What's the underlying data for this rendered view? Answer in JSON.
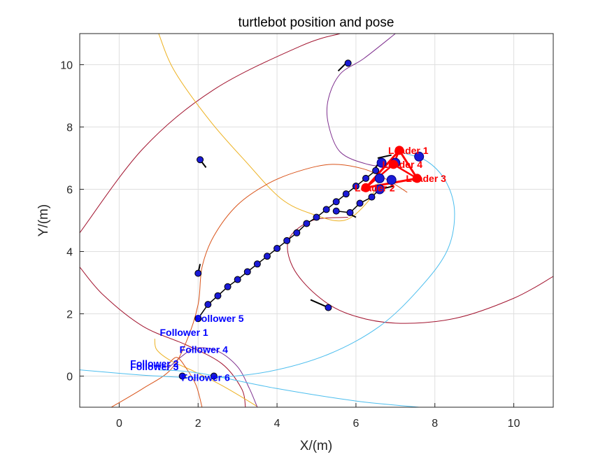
{
  "chart_data": {
    "type": "line",
    "title": "turtlebot position and pose",
    "xlabel": "X/(m)",
    "ylabel": "Y/(m)",
    "xlim": [
      -1,
      11
    ],
    "ylim": [
      -1,
      11
    ],
    "xticks": [
      0,
      2,
      4,
      6,
      8,
      10
    ],
    "yticks": [
      0,
      2,
      4,
      6,
      8,
      10
    ],
    "grid": true,
    "colors": {
      "leader": "#ff0000",
      "follower": "#0000ff",
      "marker_face": "#1a1ad6",
      "chain": "#000000",
      "traj_purple": "#7e2f8e",
      "traj_orange": "#edb120",
      "traj_red": "#d95319",
      "traj_cyan": "#4dbeee",
      "traj_maroon": "#a2142f"
    },
    "trajectories": [
      {
        "color": "#a2142f",
        "points": [
          [
            -1,
            4.6
          ],
          [
            0.6,
            7.3
          ],
          [
            2.4,
            9.2
          ],
          [
            4.6,
            10.6
          ],
          [
            5.6,
            11.0
          ]
        ]
      },
      {
        "color": "#a2142f",
        "points": [
          [
            -1,
            3.5
          ],
          [
            -0.4,
            2.6
          ],
          [
            0.6,
            1.6
          ],
          [
            1.7,
            1.0
          ],
          [
            2.6,
            0.4
          ],
          [
            3.1,
            -0.4
          ],
          [
            3.2,
            -1.0
          ]
        ]
      },
      {
        "color": "#a2142f",
        "points": [
          [
            11,
            3.2
          ],
          [
            10.0,
            2.5
          ],
          [
            8.5,
            1.85
          ],
          [
            7.0,
            1.7
          ],
          [
            5.8,
            2.0
          ],
          [
            5.0,
            2.6
          ],
          [
            4.4,
            3.5
          ],
          [
            4.3,
            4.4
          ],
          [
            4.9,
            5.0
          ],
          [
            5.8,
            5.1
          ]
        ]
      },
      {
        "color": "#edb120",
        "points": [
          [
            1.0,
            11.0
          ],
          [
            1.4,
            9.8
          ],
          [
            2.3,
            8.2
          ],
          [
            3.2,
            6.9
          ],
          [
            4.1,
            5.7
          ],
          [
            4.9,
            5.2
          ],
          [
            5.7,
            5.0
          ],
          [
            6.3,
            5.6
          ],
          [
            6.6,
            6.3
          ]
        ]
      },
      {
        "color": "#edb120",
        "points": [
          [
            0.9,
            1.2
          ],
          [
            0.95,
            0.85
          ],
          [
            1.3,
            0.5
          ],
          [
            1.9,
            0.15
          ],
          [
            2.6,
            -0.3
          ],
          [
            3.4,
            -0.9
          ],
          [
            3.5,
            -1.0
          ]
        ]
      },
      {
        "color": "#7e2f8e",
        "points": [
          [
            7.0,
            11.0
          ],
          [
            6.2,
            10.2
          ],
          [
            5.6,
            9.7
          ],
          [
            5.3,
            8.9
          ],
          [
            5.3,
            8.1
          ],
          [
            5.6,
            7.2
          ],
          [
            6.3,
            6.8
          ],
          [
            7.0,
            6.7
          ]
        ]
      },
      {
        "color": "#7e2f8e",
        "points": [
          [
            1.2,
            0.2
          ],
          [
            1.55,
            0.6
          ],
          [
            1.95,
            0.9
          ],
          [
            2.5,
            0.8
          ],
          [
            3.0,
            0.3
          ],
          [
            3.3,
            -0.4
          ],
          [
            3.5,
            -1.0
          ]
        ]
      },
      {
        "color": "#d95319",
        "points": [
          [
            -0.2,
            -1.0
          ],
          [
            0.6,
            -0.4
          ],
          [
            1.3,
            0.2
          ],
          [
            1.7,
            1.1
          ],
          [
            2.0,
            2.3
          ],
          [
            2.1,
            3.5
          ],
          [
            2.4,
            4.5
          ],
          [
            3.0,
            5.5
          ],
          [
            3.8,
            6.2
          ],
          [
            4.6,
            6.6
          ],
          [
            5.4,
            6.8
          ],
          [
            6.2,
            6.65
          ],
          [
            6.8,
            6.3
          ],
          [
            7.3,
            5.9
          ]
        ]
      },
      {
        "color": "#d95319",
        "points": [
          [
            1.2,
            0.3
          ],
          [
            1.45,
            0.6
          ],
          [
            1.7,
            0.25
          ],
          [
            1.95,
            -0.3
          ],
          [
            2.1,
            -1.0
          ]
        ]
      },
      {
        "color": "#4dbeee",
        "points": [
          [
            7.1,
            7.2
          ],
          [
            7.8,
            6.9
          ],
          [
            8.3,
            6.2
          ],
          [
            8.5,
            5.2
          ],
          [
            8.3,
            4.0
          ],
          [
            7.6,
            2.8
          ],
          [
            6.6,
            1.6
          ],
          [
            5.3,
            0.7
          ],
          [
            3.8,
            0.15
          ],
          [
            2.3,
            -0.05
          ],
          [
            1.0,
            0.0
          ],
          [
            0.1,
            0.08
          ],
          [
            -1,
            0.2
          ]
        ]
      },
      {
        "color": "#4dbeee",
        "points": [
          [
            1.0,
            0.2
          ],
          [
            2.0,
            0.1
          ],
          [
            4.0,
            -0.4
          ],
          [
            6.0,
            -0.8
          ],
          [
            7.6,
            -1.0
          ]
        ]
      }
    ],
    "chain_points": [
      [
        2.0,
        1.85
      ],
      [
        2.25,
        2.3
      ],
      [
        2.5,
        2.58
      ],
      [
        2.75,
        2.87
      ],
      [
        3.0,
        3.1
      ],
      [
        3.25,
        3.35
      ],
      [
        3.5,
        3.6
      ],
      [
        3.75,
        3.85
      ],
      [
        4.0,
        4.1
      ],
      [
        4.25,
        4.35
      ],
      [
        4.5,
        4.6
      ],
      [
        4.75,
        4.9
      ],
      [
        5.0,
        5.1
      ],
      [
        5.25,
        5.35
      ],
      [
        5.5,
        5.6
      ],
      [
        5.75,
        5.85
      ],
      [
        6.0,
        6.1
      ],
      [
        6.25,
        6.35
      ],
      [
        6.5,
        6.6
      ]
    ],
    "lower_chain_points": [
      [
        5.5,
        5.3
      ],
      [
        5.85,
        5.25
      ],
      [
        6.1,
        5.55
      ],
      [
        6.4,
        5.75
      ],
      [
        6.6,
        6.0
      ]
    ],
    "loose_markers": [
      [
        2.05,
        6.95
      ],
      [
        5.8,
        10.05
      ],
      [
        2.0,
        3.3
      ],
      [
        5.3,
        2.2
      ],
      [
        2.4,
        0.0
      ],
      [
        1.6,
        0.0
      ],
      [
        2.0,
        1.85
      ]
    ],
    "pose_segments": [
      [
        [
          5.55,
          9.8
        ],
        [
          5.75,
          10.05
        ]
      ],
      [
        [
          2.2,
          6.7
        ],
        [
          2.05,
          6.95
        ]
      ],
      [
        [
          2.05,
          3.6
        ],
        [
          2.0,
          3.3
        ]
      ],
      [
        [
          4.85,
          2.45
        ],
        [
          5.3,
          2.2
        ]
      ],
      [
        [
          5.85,
          5.2
        ],
        [
          6.0,
          5.1
        ]
      ],
      [
        [
          6.55,
          7.0
        ],
        [
          6.9,
          7.1
        ]
      ],
      [
        [
          6.45,
          6.6
        ],
        [
          6.65,
          7.0
        ]
      ],
      [
        [
          6.6,
          6.0
        ],
        [
          6.95,
          6.1
        ]
      ]
    ],
    "leaders": [
      {
        "label": "Leader 1",
        "x": 7.1,
        "y": 7.25
      },
      {
        "label": "Leader 2",
        "x": 6.25,
        "y": 6.05
      },
      {
        "label": "Leader 3",
        "x": 7.55,
        "y": 6.35
      },
      {
        "label": "Leader 4",
        "x": 6.95,
        "y": 6.8
      }
    ],
    "leader_polygon": [
      [
        7.1,
        7.25
      ],
      [
        6.25,
        6.05
      ],
      [
        7.55,
        6.35
      ],
      [
        7.1,
        7.25
      ]
    ],
    "leader_inner_lines": [
      [
        [
          6.95,
          6.8
        ],
        [
          6.25,
          6.05
        ]
      ],
      [
        [
          6.95,
          6.8
        ],
        [
          7.55,
          6.35
        ]
      ],
      [
        [
          6.95,
          6.8
        ],
        [
          7.1,
          7.25
        ]
      ]
    ],
    "cluster_markers": [
      [
        6.65,
        6.85
      ],
      [
        6.6,
        6.35
      ],
      [
        6.9,
        6.3
      ],
      [
        7.0,
        6.85
      ],
      [
        7.6,
        7.05
      ],
      [
        6.6,
        6.0
      ]
    ],
    "followers": [
      {
        "label": "Follower 5",
        "x": 2.0,
        "y": 1.85
      },
      {
        "label": "Follower 1",
        "x": 1.1,
        "y": 1.4
      },
      {
        "label": "Follower 4",
        "x": 1.6,
        "y": 0.85
      },
      {
        "label": "Follower 2",
        "x": 0.35,
        "y": 0.4
      },
      {
        "label": "Follower 3",
        "x": 0.35,
        "y": 0.3
      },
      {
        "label": "Follower 6",
        "x": 1.65,
        "y": -0.05
      }
    ]
  }
}
